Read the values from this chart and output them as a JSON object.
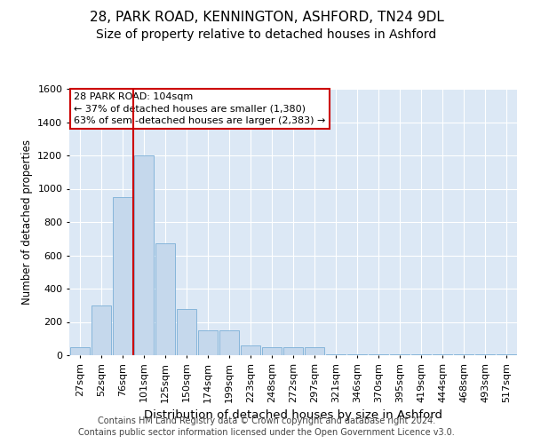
{
  "title1": "28, PARK ROAD, KENNINGTON, ASHFORD, TN24 9DL",
  "title2": "Size of property relative to detached houses in Ashford",
  "xlabel": "Distribution of detached houses by size in Ashford",
  "ylabel": "Number of detached properties",
  "categories": [
    "27sqm",
    "52sqm",
    "76sqm",
    "101sqm",
    "125sqm",
    "150sqm",
    "174sqm",
    "199sqm",
    "223sqm",
    "248sqm",
    "272sqm",
    "297sqm",
    "321sqm",
    "346sqm",
    "370sqm",
    "395sqm",
    "419sqm",
    "444sqm",
    "468sqm",
    "493sqm",
    "517sqm"
  ],
  "values": [
    50,
    300,
    950,
    1200,
    670,
    280,
    150,
    150,
    60,
    50,
    50,
    50,
    5,
    5,
    5,
    5,
    5,
    5,
    5,
    5,
    5
  ],
  "bar_color": "#c5d8ec",
  "bar_edge_color": "#7aaed6",
  "vline_x_idx": 3,
  "vline_color": "#cc0000",
  "annotation_line1": "28 PARK ROAD: 104sqm",
  "annotation_line2": "← 37% of detached houses are smaller (1,380)",
  "annotation_line3": "63% of semi-detached houses are larger (2,383) →",
  "annotation_box_color": "#ffffff",
  "annotation_box_edge": "#cc0000",
  "ylim": [
    0,
    1600
  ],
  "yticks": [
    0,
    200,
    400,
    600,
    800,
    1000,
    1200,
    1400,
    1600
  ],
  "plot_bg_color": "#dce8f5",
  "grid_color": "#ffffff",
  "footer": "Contains HM Land Registry data © Crown copyright and database right 2024.\nContains public sector information licensed under the Open Government Licence v3.0.",
  "title1_fontsize": 11,
  "title2_fontsize": 10,
  "xlabel_fontsize": 9.5,
  "ylabel_fontsize": 8.5,
  "tick_fontsize": 8,
  "footer_fontsize": 7,
  "annot_fontsize": 8
}
